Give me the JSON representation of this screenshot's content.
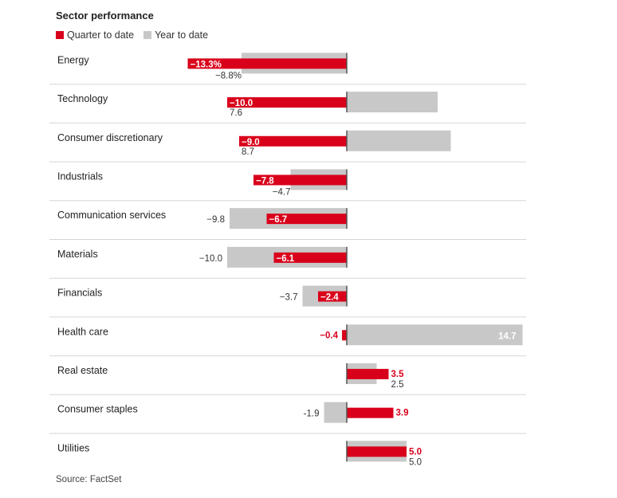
{
  "chart_data": {
    "type": "bar",
    "title": "Sector performance",
    "categories": [
      "Energy",
      "Technology",
      "Consumer discretionary",
      "Industrials",
      "Communication services",
      "Materials",
      "Financials",
      "Health care",
      "Real estate",
      "Consumer staples",
      "Utilities"
    ],
    "series": [
      {
        "name": "Quarter to date",
        "color": "#d9001b",
        "values": [
          -13.3,
          -10.0,
          -9.0,
          -7.8,
          -6.7,
          -6.1,
          -2.4,
          -0.4,
          3.5,
          3.9,
          5.0
        ],
        "labels": [
          "−13.3%",
          "−10.0",
          "−9.0",
          "−7.8",
          "−6.7",
          "−6.1",
          "−2.4",
          "−0.4",
          "3.5",
          "3.9",
          "5.0"
        ]
      },
      {
        "name": "Year to date",
        "color": "#c8c8c8",
        "values": [
          -8.8,
          7.6,
          8.7,
          -4.7,
          -9.8,
          -10.0,
          -3.7,
          14.7,
          2.5,
          -1.9,
          5.0
        ],
        "labels": [
          "−8.8%",
          "7.6",
          "8.7",
          "−4.7",
          "−9.8",
          "−10.0",
          "−3.7",
          "14.7",
          "2.5",
          "-1.9",
          "5.0"
        ]
      }
    ],
    "grid": false,
    "legend_position": "top-left"
  },
  "source": "Source: FactSet"
}
